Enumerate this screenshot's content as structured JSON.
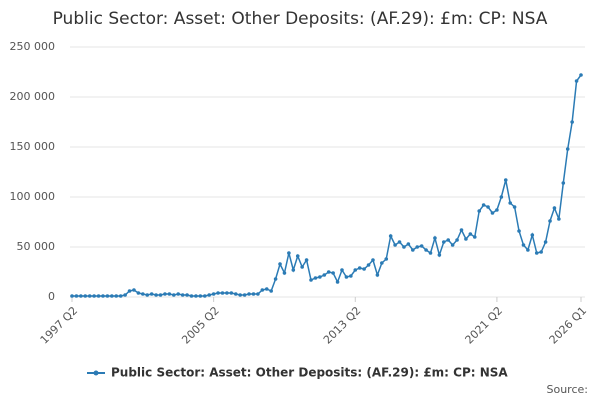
{
  "chart_data": {
    "type": "line",
    "title": "Public Sector: Asset: Other Deposits: (AF.29): £m: CP: NSA",
    "source": "Source:",
    "categories": [
      "1997 Q2",
      null,
      null,
      null,
      null,
      null,
      null,
      null,
      null,
      null,
      null,
      null,
      null,
      null,
      null,
      null,
      null,
      null,
      null,
      null,
      null,
      null,
      null,
      null,
      null,
      null,
      null,
      null,
      null,
      null,
      null,
      null,
      "2005 Q2",
      null,
      null,
      null,
      null,
      null,
      null,
      null,
      null,
      null,
      null,
      null,
      null,
      null,
      null,
      null,
      null,
      null,
      null,
      null,
      null,
      null,
      null,
      null,
      null,
      null,
      null,
      null,
      null,
      null,
      null,
      null,
      "2013 Q2",
      null,
      null,
      null,
      null,
      null,
      null,
      null,
      null,
      null,
      null,
      null,
      null,
      null,
      null,
      null,
      null,
      null,
      null,
      null,
      null,
      null,
      null,
      null,
      null,
      null,
      null,
      null,
      null,
      null,
      null,
      null,
      "2021 Q2",
      null,
      null,
      null,
      null,
      null,
      null,
      null,
      null,
      null,
      null,
      null,
      null,
      null,
      null,
      null,
      null,
      null,
      null,
      "2026 Q1"
    ],
    "series": [
      {
        "name": "Public Sector: Asset: Other Deposits: (AF.29): £m: CP: NSA",
        "color": "#2b7bb5",
        "values": [
          1000,
          1000,
          1000,
          1000,
          1000,
          1000,
          1000,
          1000,
          1000,
          1000,
          1000,
          1000,
          2000,
          6000,
          7000,
          4000,
          3000,
          2000,
          3000,
          2000,
          2000,
          3000,
          3000,
          2000,
          3000,
          2000,
          2000,
          1000,
          1000,
          1000,
          1000,
          2000,
          3000,
          4000,
          4000,
          4000,
          4000,
          3000,
          2000,
          2000,
          3000,
          3000,
          3000,
          7000,
          8000,
          6000,
          18000,
          33000,
          24000,
          44000,
          27000,
          41000,
          30000,
          37000,
          17000,
          19000,
          20000,
          22000,
          25000,
          24000,
          15000,
          27000,
          20000,
          21000,
          27000,
          29000,
          28000,
          32000,
          37000,
          22000,
          34000,
          38000,
          61000,
          52000,
          55000,
          50000,
          53000,
          47000,
          50000,
          51000,
          47000,
          44000,
          59000,
          42000,
          55000,
          57000,
          52000,
          57000,
          67000,
          58000,
          63000,
          60000,
          86000,
          92000,
          90000,
          84000,
          87000,
          100000,
          117000,
          94000,
          90000,
          66000,
          52000,
          47000,
          62000,
          44000,
          45000,
          55000,
          76000,
          89000,
          78000,
          114000,
          148000,
          175000,
          216000,
          222000
        ]
      }
    ],
    "ylim": [
      0,
      250000
    ],
    "yticks": [
      0,
      {
        "value": 50000,
        "label": "50 000"
      },
      {
        "value": 100000,
        "label": "100 000"
      },
      {
        "value": 150000,
        "label": "150 000"
      },
      {
        "value": 200000,
        "label": "200 000"
      },
      {
        "value": 250000,
        "label": "250 000"
      }
    ],
    "grid": true,
    "legend": "bottom"
  }
}
